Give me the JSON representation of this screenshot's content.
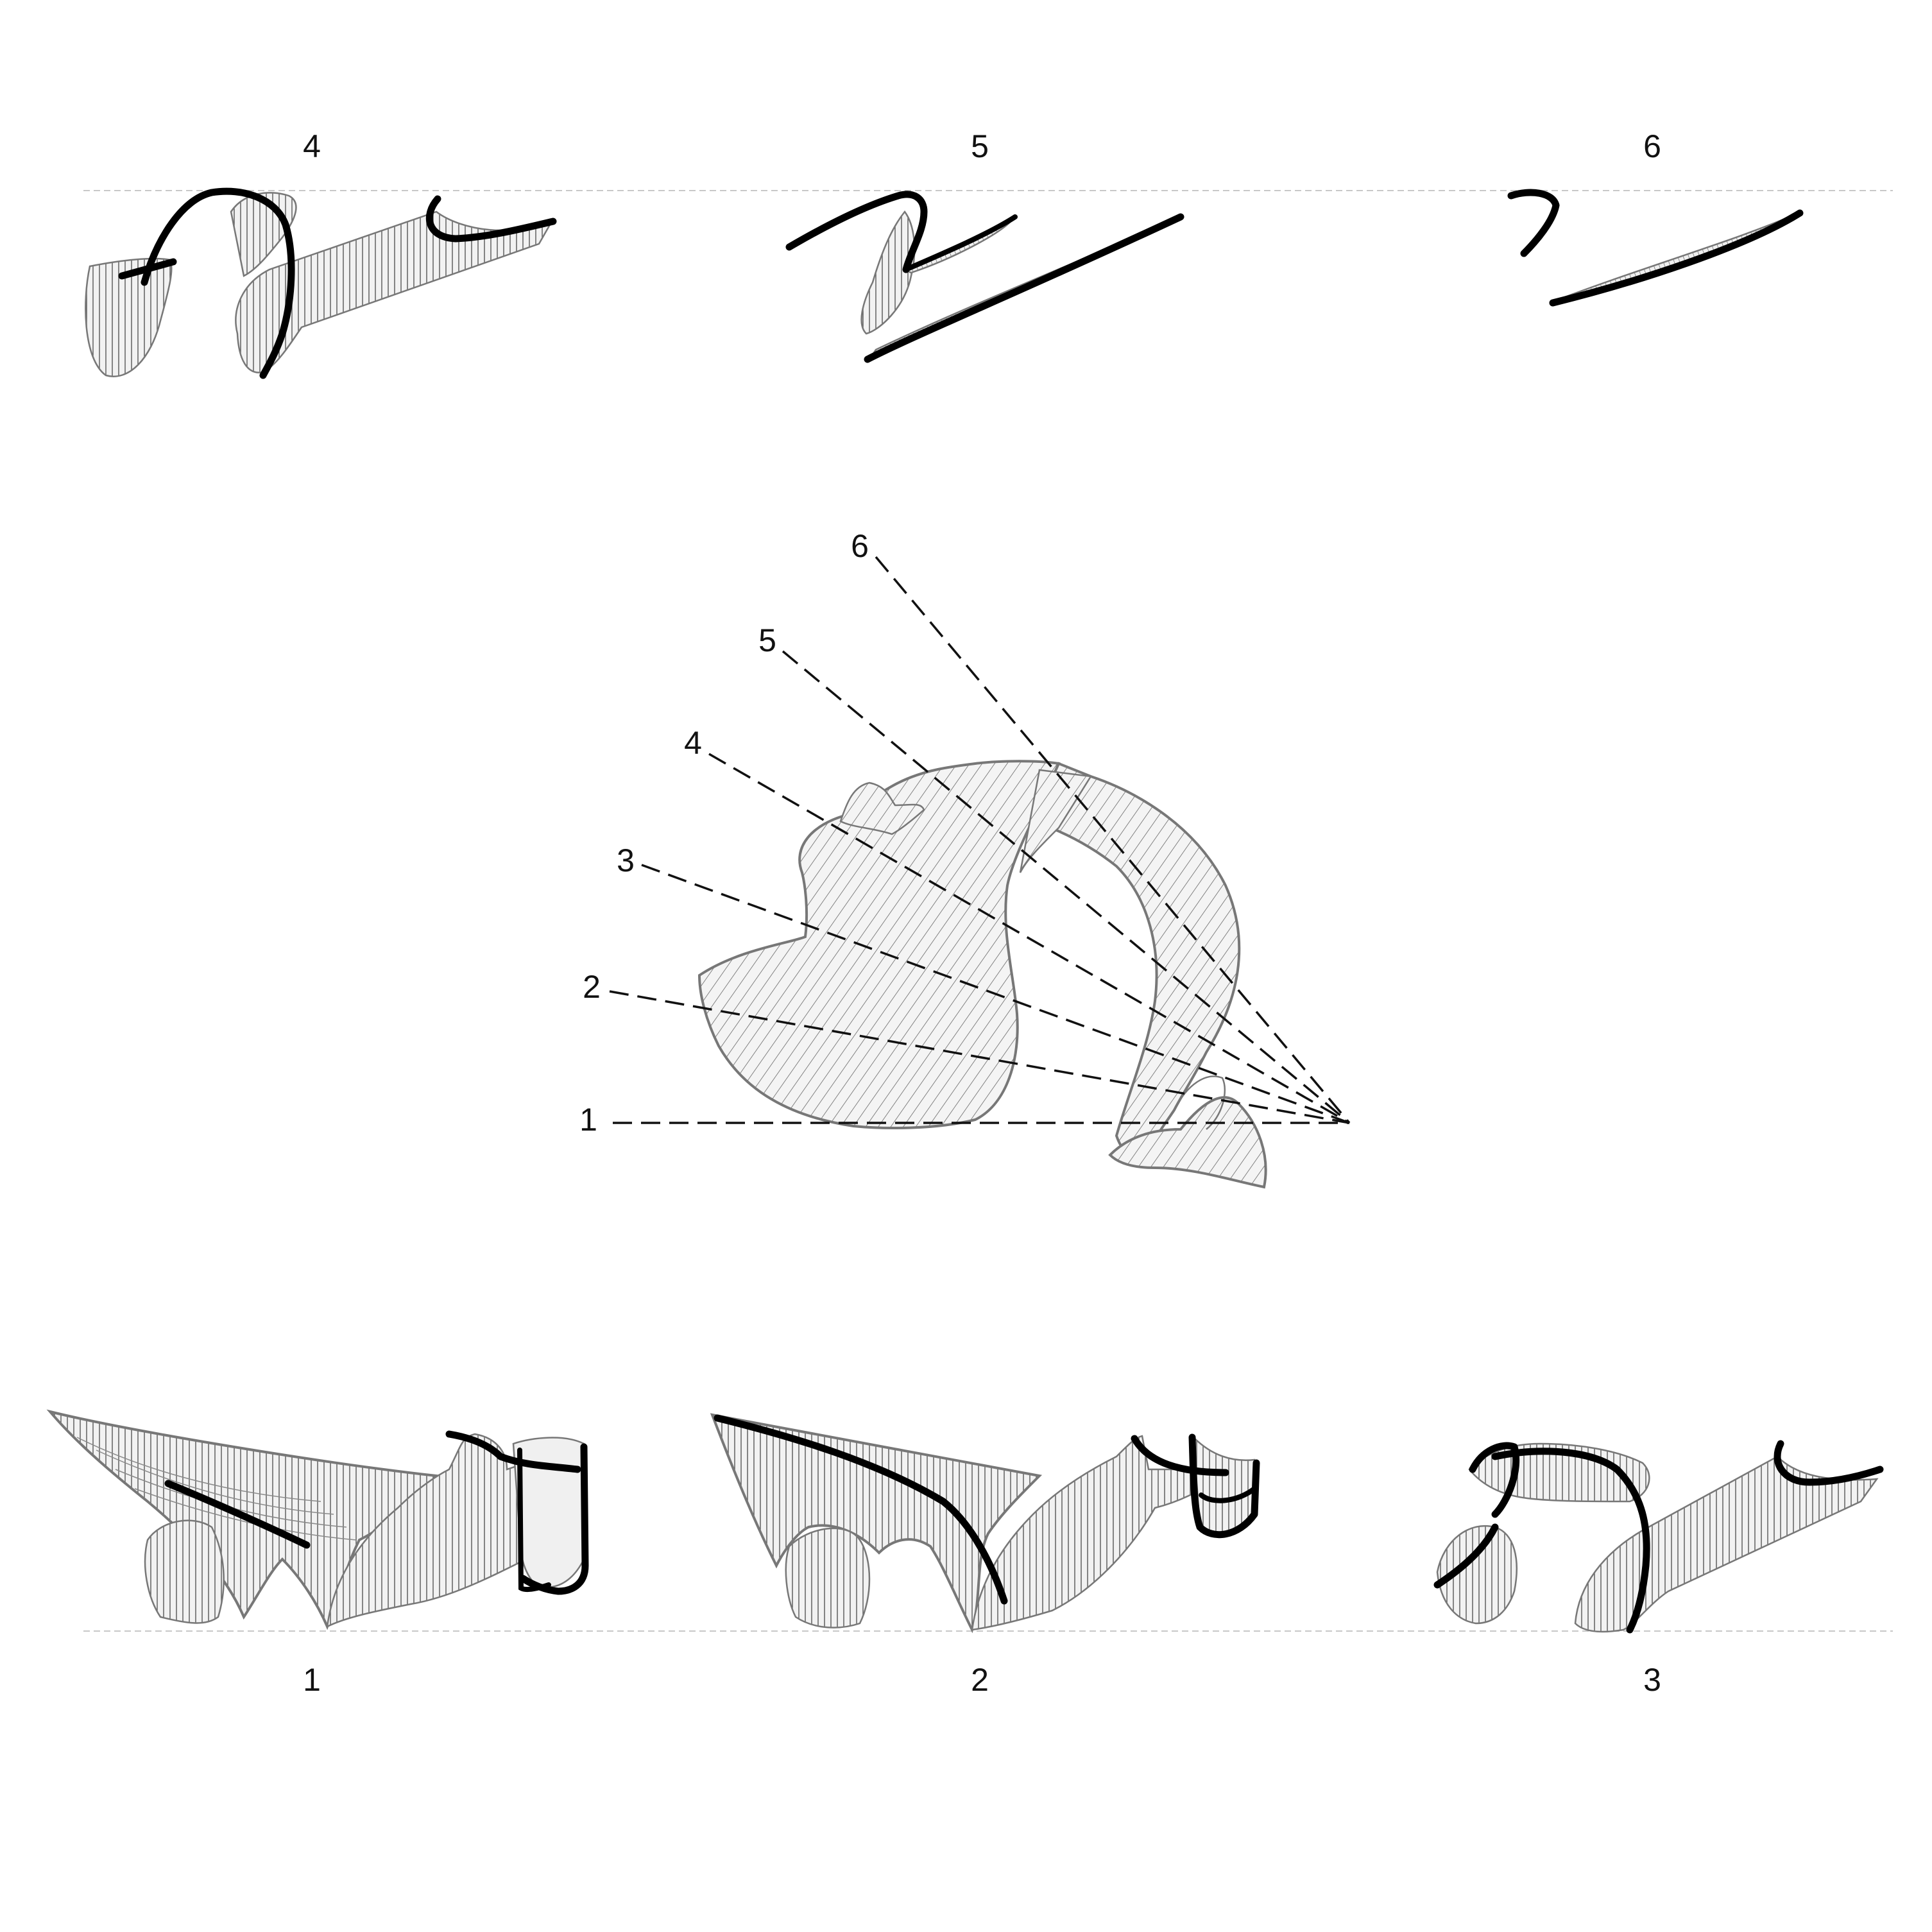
{
  "top_row_labels": [
    "4",
    "5",
    "6"
  ],
  "bottom_row_labels": [
    "1",
    "2",
    "3"
  ],
  "center_ray_labels": [
    "1",
    "2",
    "3",
    "4",
    "5",
    "6"
  ],
  "colors": {
    "ink": "#000000",
    "outline": "#777777",
    "hatch": "#555555",
    "fill_light": "#efefef",
    "guide": "#c8c8c8"
  }
}
